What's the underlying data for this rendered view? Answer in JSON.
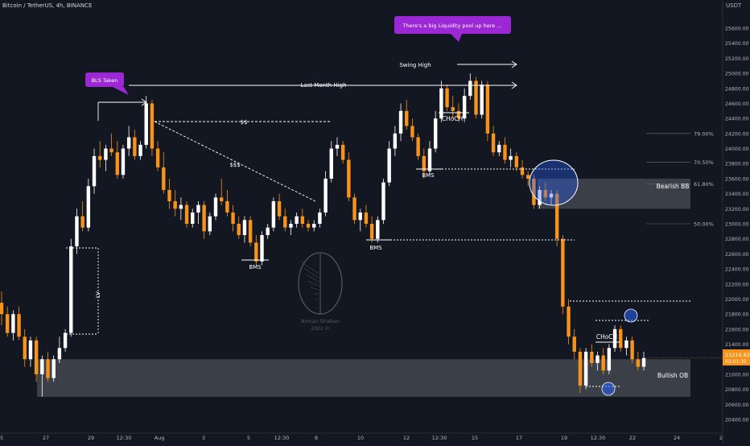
{
  "header": {
    "symbol": "Bitcoin / TetherUS, 4h, BINANCE",
    "currency": "USDT"
  },
  "watermark": {
    "name": "Arman Shaban",
    "year": "2022 ©"
  },
  "price_tag": {
    "price": "21216.62",
    "countdown": "03:01:35",
    "color": "#f7931a"
  },
  "colors": {
    "background": "#131722",
    "up_candle": "#ffffff",
    "down_candle": "#f7931a",
    "zone": "#4a4d56",
    "callout": "#9c27d4",
    "circle": "#2962ff",
    "grid_text": "#b2b5be"
  },
  "annotations": {
    "bls_taken": "BLS Taken",
    "liquidity": "There's a big Liquidity pool up here ...",
    "last_month_high": "Last Month High",
    "swing_high": "Swing High",
    "dollars_2": "$$",
    "dollars_3": "$$$",
    "choch_top": "CHoCH",
    "choch_bottom": "CHoCH",
    "bms_1": "BMS",
    "bms_2": "BMS",
    "bms_3": "BMS",
    "lv": "LV",
    "bearish_bb": "Bearish BB",
    "bullish_ob": "Bullish OB"
  },
  "fib_levels": [
    {
      "label": "79.00%",
      "price": 24200
    },
    {
      "label": "70.50%",
      "price": 23820
    },
    {
      "label": "61.80%",
      "price": 23530
    },
    {
      "label": "50.00%",
      "price": 23000
    }
  ],
  "chart_data": {
    "type": "candlestick",
    "title": "Bitcoin / TetherUS, 4h, BINANCE",
    "ylim": [
      20400,
      25800
    ],
    "y_axis_position": "right",
    "y_ticks": [
      20400,
      20600,
      20800,
      21000,
      21200,
      21400,
      21600,
      21800,
      22000,
      22200,
      22400,
      22600,
      22800,
      23000,
      23200,
      23400,
      23600,
      23800,
      24000,
      24200,
      24400,
      24600,
      24800,
      25000,
      25200,
      25400,
      25600
    ],
    "x_ticks": [
      "5",
      "27",
      "29",
      "12:30",
      "Aug",
      "3",
      "5",
      "12:30",
      "8",
      "10",
      "12",
      "12:30",
      "15",
      "17",
      "19",
      "12:30",
      "22",
      "24",
      "2"
    ],
    "candles": [
      [
        21950,
        22100,
        21650,
        21800
      ],
      [
        21800,
        21900,
        21500,
        21550
      ],
      [
        21550,
        21850,
        21450,
        21800
      ],
      [
        21800,
        21900,
        21450,
        21500
      ],
      [
        21500,
        21600,
        21100,
        21200
      ],
      [
        21200,
        21500,
        21100,
        21450
      ],
      [
        21450,
        21500,
        20900,
        21000
      ],
      [
        21000,
        21250,
        20700,
        21200
      ],
      [
        21200,
        21300,
        20900,
        20950
      ],
      [
        20950,
        21250,
        20900,
        21200
      ],
      [
        21200,
        21500,
        21150,
        21350
      ],
      [
        21350,
        21600,
        21300,
        21550
      ],
      [
        21550,
        22800,
        21500,
        22700
      ],
      [
        22700,
        23200,
        22600,
        23100
      ],
      [
        23100,
        23300,
        22900,
        22950
      ],
      [
        22950,
        23600,
        22900,
        23500
      ],
      [
        23500,
        24000,
        23400,
        23900
      ],
      [
        23900,
        24100,
        23750,
        23850
      ],
      [
        23850,
        24050,
        23700,
        24000
      ],
      [
        24000,
        24200,
        23900,
        23950
      ],
      [
        23950,
        24100,
        23600,
        23650
      ],
      [
        23650,
        24050,
        23600,
        24000
      ],
      [
        24000,
        24300,
        23900,
        24150
      ],
      [
        24150,
        24250,
        23850,
        23900
      ],
      [
        23900,
        24100,
        23850,
        24050
      ],
      [
        24050,
        24700,
        24000,
        24600
      ],
      [
        24600,
        24650,
        23900,
        24000
      ],
      [
        24000,
        24100,
        23700,
        23750
      ],
      [
        23750,
        23950,
        23400,
        23450
      ],
      [
        23450,
        23600,
        23200,
        23300
      ],
      [
        23300,
        23450,
        23100,
        23200
      ],
      [
        23200,
        23350,
        23050,
        23250
      ],
      [
        23250,
        23300,
        22950,
        23000
      ],
      [
        23000,
        23200,
        22950,
        23150
      ],
      [
        23150,
        23300,
        23000,
        23250
      ],
      [
        23250,
        23300,
        22800,
        22900
      ],
      [
        22900,
        23150,
        22850,
        23100
      ],
      [
        23100,
        23400,
        23050,
        23350
      ],
      [
        23350,
        23600,
        23250,
        23300
      ],
      [
        23300,
        23450,
        23100,
        23150
      ],
      [
        23150,
        23250,
        22900,
        23000
      ],
      [
        23000,
        23100,
        22800,
        22850
      ],
      [
        22850,
        23100,
        22750,
        23050
      ],
      [
        23050,
        23100,
        22700,
        22750
      ],
      [
        22750,
        22850,
        22450,
        22500
      ],
      [
        22500,
        22900,
        22450,
        22850
      ],
      [
        22850,
        23000,
        22800,
        22950
      ],
      [
        22950,
        23350,
        22900,
        23300
      ],
      [
        23300,
        23400,
        23050,
        23100
      ],
      [
        23100,
        23200,
        22900,
        22950
      ],
      [
        22950,
        23050,
        22850,
        23000
      ],
      [
        23000,
        23150,
        22950,
        23100
      ],
      [
        23100,
        23200,
        22950,
        23000
      ],
      [
        23000,
        23050,
        22900,
        22950
      ],
      [
        22950,
        23050,
        22900,
        23000
      ],
      [
        23000,
        23200,
        22950,
        23150
      ],
      [
        23150,
        23700,
        23100,
        23600
      ],
      [
        23600,
        24100,
        23550,
        24000
      ],
      [
        24000,
        24150,
        23900,
        24050
      ],
      [
        24050,
        24100,
        23800,
        23850
      ],
      [
        23850,
        23950,
        23300,
        23350
      ],
      [
        23350,
        23400,
        23000,
        23050
      ],
      [
        23050,
        23200,
        22900,
        23150
      ],
      [
        23150,
        23250,
        22950,
        23000
      ],
      [
        23000,
        23100,
        22750,
        22800
      ],
      [
        22800,
        23100,
        22750,
        23050
      ],
      [
        23050,
        23600,
        23000,
        23550
      ],
      [
        23550,
        24100,
        23500,
        24000
      ],
      [
        24000,
        24300,
        23900,
        24200
      ],
      [
        24200,
        24600,
        24100,
        24500
      ],
      [
        24500,
        24650,
        24250,
        24300
      ],
      [
        24300,
        24400,
        24100,
        24150
      ],
      [
        24150,
        24200,
        23850,
        23900
      ],
      [
        23900,
        24000,
        23600,
        23700
      ],
      [
        23700,
        24100,
        23650,
        24000
      ],
      [
        24000,
        24500,
        23950,
        24400
      ],
      [
        24400,
        24900,
        24350,
        24800
      ],
      [
        24800,
        24850,
        24500,
        24550
      ],
      [
        24550,
        24700,
        24400,
        24500
      ],
      [
        24500,
        24600,
        24350,
        24400
      ],
      [
        24400,
        24800,
        24350,
        24700
      ],
      [
        24700,
        25000,
        24650,
        24900
      ],
      [
        24900,
        24950,
        24400,
        24450
      ],
      [
        24450,
        24900,
        24400,
        24850
      ],
      [
        24850,
        24900,
        24100,
        24200
      ],
      [
        24200,
        24300,
        23900,
        23950
      ],
      [
        23950,
        24100,
        23900,
        24050
      ],
      [
        24050,
        24150,
        23800,
        23850
      ],
      [
        23850,
        24000,
        23750,
        23900
      ],
      [
        23900,
        23950,
        23700,
        23750
      ],
      [
        23750,
        23850,
        23600,
        23650
      ],
      [
        23650,
        23700,
        23500,
        23600
      ],
      [
        23600,
        23650,
        23200,
        23250
      ],
      [
        23250,
        23500,
        23200,
        23450
      ],
      [
        23450,
        23550,
        23300,
        23350
      ],
      [
        23350,
        23450,
        23250,
        23400
      ],
      [
        23400,
        23450,
        22700,
        22800
      ],
      [
        22800,
        22850,
        21800,
        21900
      ],
      [
        21900,
        22000,
        21400,
        21500
      ],
      [
        21500,
        21600,
        21200,
        21300
      ],
      [
        21300,
        21350,
        20750,
        20850
      ],
      [
        20850,
        21350,
        20800,
        21300
      ],
      [
        21300,
        21400,
        21100,
        21150
      ],
      [
        21150,
        21300,
        21050,
        21250
      ],
      [
        21250,
        21350,
        21000,
        21050
      ],
      [
        21050,
        21400,
        21000,
        21350
      ],
      [
        21350,
        21650,
        21300,
        21600
      ],
      [
        21600,
        21650,
        21300,
        21350
      ],
      [
        21350,
        21500,
        21250,
        21450
      ],
      [
        21450,
        21500,
        21150,
        21200
      ],
      [
        21200,
        21300,
        21050,
        21100
      ],
      [
        21100,
        21300,
        21050,
        21216
      ]
    ]
  }
}
